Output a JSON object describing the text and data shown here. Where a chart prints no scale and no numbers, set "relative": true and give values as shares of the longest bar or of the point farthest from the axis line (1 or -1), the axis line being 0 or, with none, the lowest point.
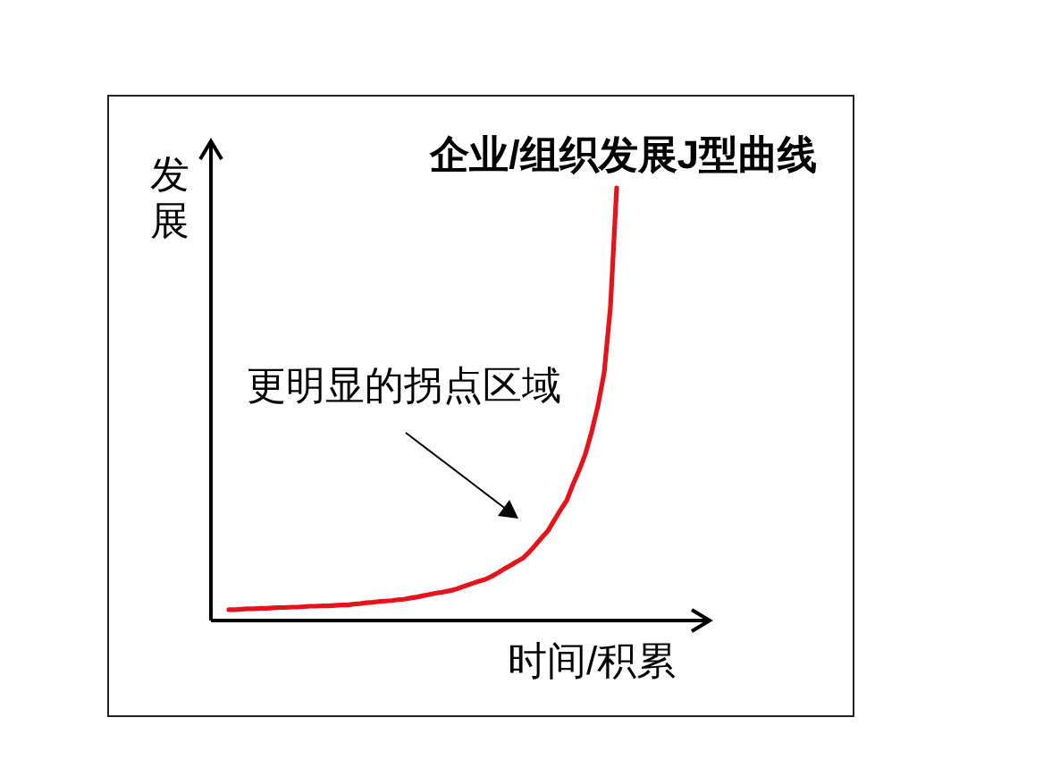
{
  "chart_data": {
    "type": "line",
    "title": "企业/组织发展J型曲线",
    "xlabel": "时间/积累",
    "ylabel": "发展",
    "annotations": [
      "更明显的拐点区域"
    ],
    "categories": [
      null,
      null,
      null,
      null,
      null,
      null,
      null,
      null,
      null,
      null,
      null,
      null,
      null,
      null,
      null,
      null,
      null,
      null,
      null,
      null,
      null,
      null,
      null,
      null,
      null,
      null,
      null,
      null,
      null,
      null,
      null,
      null,
      null,
      null,
      null,
      null,
      null,
      null,
      null,
      null,
      null,
      null,
      null,
      null,
      null,
      null,
      null,
      null,
      null,
      null,
      null,
      null,
      null,
      null,
      null,
      null,
      null,
      null,
      null,
      null,
      null,
      null,
      null
    ],
    "relative": true,
    "color": "#e3141b",
    "line_style": "solid",
    "values": [
      0.025,
      0.025,
      0.026,
      0.027,
      0.027,
      0.028,
      0.028,
      0.029,
      0.03,
      0.03,
      0.031,
      0.031,
      0.032,
      0.033,
      0.033,
      0.034,
      0.034,
      0.035,
      0.036,
      0.036,
      0.038,
      0.039,
      0.041,
      0.042,
      0.044,
      0.045,
      0.046,
      0.048,
      0.049,
      0.052,
      0.054,
      0.057,
      0.06,
      0.063,
      0.065,
      0.068,
      0.071,
      0.076,
      0.081,
      0.086,
      0.091,
      0.095,
      0.102,
      0.11,
      0.119,
      0.127,
      0.136,
      0.144,
      0.158,
      0.174,
      0.191,
      0.207,
      0.231,
      0.255,
      0.277,
      0.314,
      0.347,
      0.385,
      0.436,
      0.496,
      0.573,
      0.724,
      1.0
    ]
  }
}
